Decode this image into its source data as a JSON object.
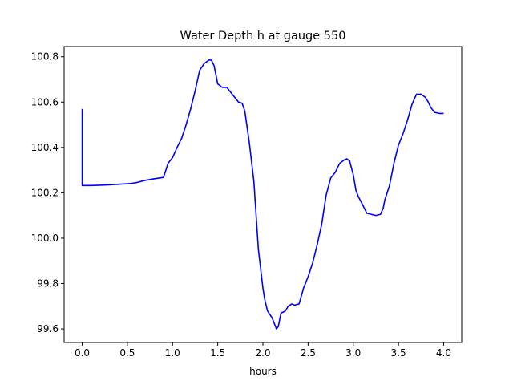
{
  "chart_data": {
    "type": "line",
    "title": "Water Depth h at gauge 550",
    "xlabel": "hours",
    "ylabel": "",
    "xlim": [
      -0.2,
      4.2
    ],
    "ylim": [
      99.54,
      100.845
    ],
    "xticks": [
      0.0,
      0.5,
      1.0,
      1.5,
      2.0,
      2.5,
      3.0,
      3.5,
      4.0
    ],
    "xtick_labels": [
      "0.0",
      "0.5",
      "1.0",
      "1.5",
      "2.0",
      "2.5",
      "3.0",
      "3.5",
      "4.0"
    ],
    "yticks": [
      99.6,
      99.8,
      100.0,
      100.2,
      100.4,
      100.6,
      100.8
    ],
    "ytick_labels": [
      "99.6",
      "99.8",
      "100.0",
      "100.2",
      "100.4",
      "100.6",
      "100.8"
    ],
    "grid": false,
    "series": [
      {
        "color": "#0000ff",
        "x": [
          0.0,
          0.0,
          0.1,
          0.3,
          0.5,
          0.55,
          0.6,
          0.7,
          0.8,
          0.9,
          0.95,
          1.0,
          1.05,
          1.1,
          1.15,
          1.2,
          1.25,
          1.3,
          1.35,
          1.4,
          1.43,
          1.46,
          1.5,
          1.55,
          1.6,
          1.65,
          1.7,
          1.73,
          1.77,
          1.8,
          1.85,
          1.9,
          1.95,
          2.0,
          2.02,
          2.05,
          2.1,
          2.15,
          2.17,
          2.2,
          2.23,
          2.25,
          2.28,
          2.32,
          2.35,
          2.4,
          2.45,
          2.5,
          2.55,
          2.6,
          2.65,
          2.7,
          2.75,
          2.8,
          2.85,
          2.9,
          2.93,
          2.96,
          3.0,
          3.03,
          3.06,
          3.1,
          3.15,
          3.2,
          3.25,
          3.3,
          3.33,
          3.35,
          3.4,
          3.45,
          3.5,
          3.55,
          3.6,
          3.65,
          3.7,
          3.75,
          3.8,
          3.83,
          3.86,
          3.9,
          3.95,
          4.0
        ],
        "y": [
          100.57,
          100.232,
          100.232,
          100.235,
          100.24,
          100.242,
          100.245,
          100.255,
          100.262,
          100.268,
          100.33,
          100.355,
          100.4,
          100.44,
          100.5,
          100.57,
          100.65,
          100.74,
          100.77,
          100.785,
          100.785,
          100.76,
          100.68,
          100.665,
          100.665,
          100.64,
          100.615,
          100.6,
          100.595,
          100.56,
          100.42,
          100.25,
          99.95,
          99.78,
          99.73,
          99.68,
          99.65,
          99.6,
          99.61,
          99.67,
          99.675,
          99.68,
          99.7,
          99.71,
          99.705,
          99.71,
          99.78,
          99.83,
          99.89,
          99.97,
          100.06,
          100.19,
          100.265,
          100.29,
          100.33,
          100.345,
          100.35,
          100.34,
          100.28,
          100.21,
          100.18,
          100.15,
          100.11,
          100.105,
          100.1,
          100.105,
          100.13,
          100.17,
          100.23,
          100.33,
          100.41,
          100.46,
          100.52,
          100.59,
          100.635,
          100.635,
          100.62,
          100.6,
          100.575,
          100.555,
          100.55,
          100.55
        ]
      }
    ]
  }
}
